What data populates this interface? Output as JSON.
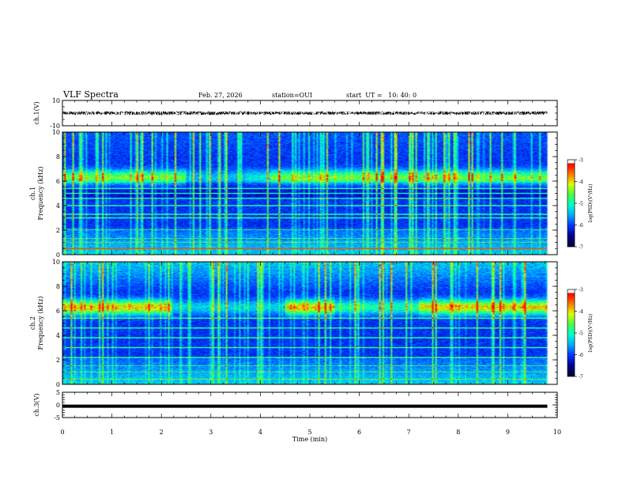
{
  "header": {
    "title": "VLF Spectra",
    "date": "Feb. 27, 2026",
    "station": "station=OUI",
    "start": "start  UT =   10: 40: 0"
  },
  "colors": {
    "colormap": [
      "#000033",
      "#000090",
      "#0033ff",
      "#00aaff",
      "#00ffcc",
      "#44ff44",
      "#ddff00",
      "#ff7700",
      "#ff0000",
      "#ffffff"
    ]
  },
  "chart_data": [
    {
      "type": "line",
      "panel": "ch1",
      "ylabel": "ch.1(V)",
      "ylim": [
        -10,
        10
      ],
      "yticks": [
        "10",
        "-10"
      ],
      "note": "broadband waveform, amplitude approx +/-1.5 V around 0 across 0-9.8 min",
      "x": [
        0,
        1,
        2,
        3,
        4,
        5,
        6,
        7,
        8,
        9,
        9.8
      ],
      "y_envelope": [
        1.5,
        1.4,
        1.6,
        1.5,
        1.4,
        1.3,
        1.4,
        1.3,
        1.4,
        1.4,
        1.4
      ]
    },
    {
      "type": "heatmap",
      "panel": "ch1-spectrogram",
      "ylabel_line1": "ch.1",
      "ylabel_line2": "Frequency (kHz)",
      "ylim": [
        0,
        10
      ],
      "yticks": [
        "0",
        "2",
        "4",
        "6",
        "8",
        "10"
      ],
      "xlim": [
        0,
        10
      ],
      "data_end_min": 9.8,
      "colorbar_label": "log(PSD)(V²/Hz)",
      "colorbar_range": [
        -7,
        -3
      ],
      "colorbar_ticks": [
        "-3",
        "-4",
        "-5",
        "-6",
        "-7"
      ],
      "lines_khz": [
        0.5,
        1.0,
        1.3,
        2.0,
        3.0,
        3.3,
        4.0,
        4.6,
        5.0,
        5.4
      ],
      "band_6khz_level": 0.45
    },
    {
      "type": "heatmap",
      "panel": "ch2-spectrogram",
      "ylabel_line1": "ch.2",
      "ylabel_line2": "Frequency (kHz)",
      "ylim": [
        0,
        10
      ],
      "yticks": [
        "0",
        "2",
        "4",
        "6",
        "8",
        "10"
      ],
      "xlim": [
        0,
        10
      ],
      "data_end_min": 9.8,
      "colorbar_label": "log(PSD)(V²/Hz)",
      "colorbar_range": [
        -7,
        -3
      ],
      "colorbar_ticks": [
        "-3",
        "-4",
        "-5",
        "-6",
        "-7"
      ],
      "lines_khz": [
        0.4,
        1.0,
        1.5,
        2.2,
        3.0,
        3.8,
        4.6,
        5.4
      ],
      "band_6khz_level": 0.6
    },
    {
      "type": "line",
      "panel": "ch3",
      "ylabel": "ch.3(V)",
      "ylim": [
        -5,
        5
      ],
      "yticks": [
        "5",
        "0",
        "-5"
      ],
      "note": "flat signal at approx -0.5 V",
      "x": [
        0,
        9.8
      ],
      "y": [
        -0.5,
        -0.5
      ]
    }
  ],
  "xaxis": {
    "label": "Time (min)",
    "ticks": [
      "0",
      "1",
      "2",
      "3",
      "4",
      "5",
      "6",
      "7",
      "8",
      "9",
      "10"
    ]
  }
}
